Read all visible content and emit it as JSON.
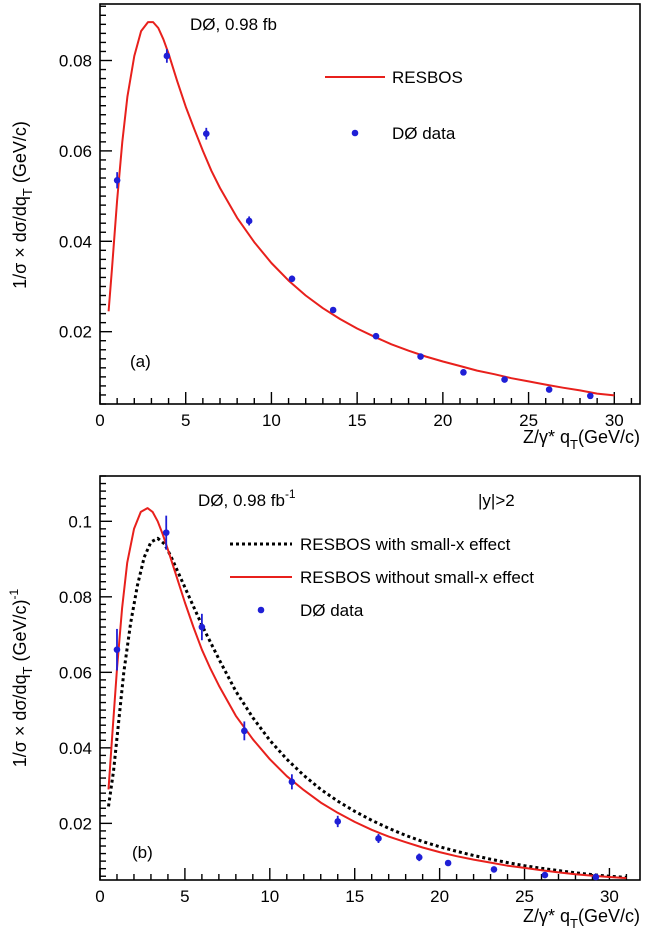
{
  "chart_data": [
    {
      "type": "line",
      "panel_label": "(a)",
      "annotation": "DØ, 0.98 fb",
      "xlabel": "Z/γ* q",
      "xlabel_sub": "T",
      "xlabel_unit": "(GeV/c)",
      "ylabel": "1/σ × dσ/dq",
      "ylabel_sub": "T",
      "ylabel_unit": "(GeV/c)",
      "xlim": [
        0,
        31.5
      ],
      "ylim": [
        0.004,
        0.0925
      ],
      "x_ticks": [
        0,
        5,
        10,
        15,
        20,
        25,
        30
      ],
      "y_ticks": [
        0.02,
        0.04,
        0.06,
        0.08
      ],
      "y_tick_labels": [
        "0.02",
        "0.04",
        "0.06",
        "0.08"
      ],
      "legend": [
        {
          "label": "RESBOS",
          "style": "line",
          "color": "#e8201c"
        },
        {
          "label": "DØ data",
          "style": "point",
          "color": "#1f1fd6"
        }
      ],
      "series": [
        {
          "name": "RESBOS",
          "style": "solid",
          "color": "#e8201c",
          "x": [
            0.5,
            0.7,
            1.0,
            1.3,
            1.6,
            2.0,
            2.4,
            2.8,
            3.1,
            3.4,
            3.7,
            4.0,
            4.5,
            5.0,
            5.5,
            6.0,
            6.5,
            7.0,
            8.0,
            9.0,
            10.0,
            11.0,
            12.0,
            13.0,
            14.0,
            15.0,
            16.0,
            17.0,
            18.0,
            19.0,
            20.0,
            21.0,
            22.0,
            23.0,
            24.0,
            25.0,
            26.0,
            27.0,
            28.0,
            29.0,
            30.0
          ],
          "y": [
            0.0245,
            0.034,
            0.049,
            0.062,
            0.072,
            0.081,
            0.0865,
            0.0885,
            0.0885,
            0.0872,
            0.0847,
            0.0815,
            0.0755,
            0.0698,
            0.0648,
            0.06,
            0.0556,
            0.0518,
            0.0452,
            0.0398,
            0.0352,
            0.0313,
            0.028,
            0.0252,
            0.0228,
            0.0207,
            0.0189,
            0.0172,
            0.0158,
            0.0145,
            0.0134,
            0.0124,
            0.0114,
            0.0106,
            0.0097,
            0.009,
            0.0083,
            0.0076,
            0.007,
            0.0063,
            0.0059
          ]
        },
        {
          "name": "DØ data",
          "style": "points",
          "color": "#1f1fd6",
          "x": [
            1.0,
            3.9,
            6.2,
            8.7,
            11.2,
            13.6,
            16.1,
            18.7,
            21.2,
            23.6,
            26.2,
            28.6
          ],
          "y": [
            0.0535,
            0.081,
            0.0638,
            0.0445,
            0.0317,
            0.0248,
            0.019,
            0.0145,
            0.011,
            0.0094,
            0.0072,
            0.0058
          ],
          "err": [
            0.0018,
            0.0015,
            0.0013,
            0.001,
            0.0007,
            0.0006,
            0.0004,
            0.0003,
            0.0003,
            0.0002,
            0.0002,
            0.0002
          ]
        }
      ]
    },
    {
      "type": "line",
      "panel_label": "(b)",
      "annotation": "DØ, 0.98 fb",
      "annotation_sup": "-1",
      "annotation2": "|y|>2",
      "xlabel": "Z/γ* q",
      "xlabel_sub": "T",
      "xlabel_unit": "(GeV/c)",
      "ylabel": "1/σ × dσ/dq",
      "ylabel_sub": "T",
      "ylabel_unit": "(GeV/c)",
      "ylabel_sup": "-1",
      "xlim": [
        0,
        31.8
      ],
      "ylim": [
        0.005,
        0.112
      ],
      "x_ticks": [
        0,
        5,
        10,
        15,
        20,
        25,
        30
      ],
      "y_ticks": [
        0.02,
        0.04,
        0.06,
        0.08,
        0.1
      ],
      "y_tick_labels": [
        "0.02",
        "0.04",
        "0.06",
        "0.08",
        "0.1"
      ],
      "legend": [
        {
          "label": "RESBOS with small-x effect",
          "style": "dotted",
          "color": "#000000"
        },
        {
          "label": "RESBOS without small-x effect",
          "style": "line",
          "color": "#e8201c"
        },
        {
          "label": "DØ data",
          "style": "point",
          "color": "#1f1fd6"
        }
      ],
      "series": [
        {
          "name": "RESBOS with small-x effect",
          "style": "dotted",
          "color": "#000000",
          "x": [
            0.5,
            0.8,
            1.1,
            1.4,
            1.8,
            2.2,
            2.6,
            3.0,
            3.4,
            3.8,
            4.2,
            4.6,
            5.0,
            5.5,
            6.0,
            6.5,
            7.0,
            8.0,
            9.0,
            10.0,
            11.0,
            12.0,
            13.0,
            14.0,
            15.0,
            16.0,
            17.0,
            18.0,
            19.0,
            20.0,
            21.0,
            22.0,
            23.0,
            24.0,
            25.0,
            26.0,
            27.0,
            28.0,
            29.0,
            30.0,
            31.0
          ],
          "y": [
            0.0245,
            0.034,
            0.047,
            0.06,
            0.073,
            0.083,
            0.0905,
            0.0945,
            0.0955,
            0.094,
            0.0905,
            0.0865,
            0.0825,
            0.0775,
            0.0725,
            0.068,
            0.0635,
            0.055,
            0.048,
            0.042,
            0.037,
            0.0327,
            0.029,
            0.0259,
            0.0232,
            0.0208,
            0.0187,
            0.0168,
            0.0152,
            0.0138,
            0.0126,
            0.0115,
            0.0105,
            0.0096,
            0.0088,
            0.0081,
            0.0075,
            0.0069,
            0.0064,
            0.006,
            0.0057
          ]
        },
        {
          "name": "RESBOS without small-x effect",
          "style": "solid",
          "color": "#e8201c",
          "x": [
            0.5,
            0.7,
            1.0,
            1.3,
            1.6,
            2.0,
            2.4,
            2.8,
            3.1,
            3.4,
            3.7,
            4.0,
            4.5,
            5.0,
            5.5,
            6.0,
            6.5,
            7.0,
            8.0,
            9.0,
            10.0,
            11.0,
            12.0,
            13.0,
            14.0,
            15.0,
            16.0,
            17.0,
            18.0,
            19.0,
            20.0,
            21.0,
            22.0,
            23.0,
            24.0,
            25.0,
            26.0,
            27.0,
            28.0,
            29.0,
            30.0,
            31.0
          ],
          "y": [
            0.029,
            0.042,
            0.061,
            0.077,
            0.089,
            0.098,
            0.1025,
            0.1035,
            0.1025,
            0.1,
            0.0965,
            0.0925,
            0.0855,
            0.0785,
            0.072,
            0.066,
            0.061,
            0.0565,
            0.0485,
            0.0423,
            0.037,
            0.0325,
            0.0288,
            0.0255,
            0.0228,
            0.0204,
            0.0183,
            0.0165,
            0.015,
            0.0136,
            0.0124,
            0.0113,
            0.0104,
            0.0096,
            0.0088,
            0.0082,
            0.0076,
            0.007,
            0.0065,
            0.0061,
            0.0058,
            0.0055
          ]
        },
        {
          "name": "DØ data",
          "style": "points",
          "color": "#1f1fd6",
          "x": [
            1.0,
            3.9,
            6.0,
            8.5,
            11.3,
            14.0,
            16.4,
            18.8,
            20.5,
            23.2,
            26.2,
            29.2
          ],
          "y": [
            0.066,
            0.097,
            0.072,
            0.0445,
            0.031,
            0.0205,
            0.016,
            0.011,
            0.0095,
            0.0078,
            0.0063,
            0.0058
          ],
          "err": [
            0.0055,
            0.0045,
            0.0035,
            0.0025,
            0.002,
            0.0015,
            0.0012,
            0.001,
            0.0008,
            0.0006,
            0.0005,
            0.0004
          ]
        }
      ]
    }
  ]
}
